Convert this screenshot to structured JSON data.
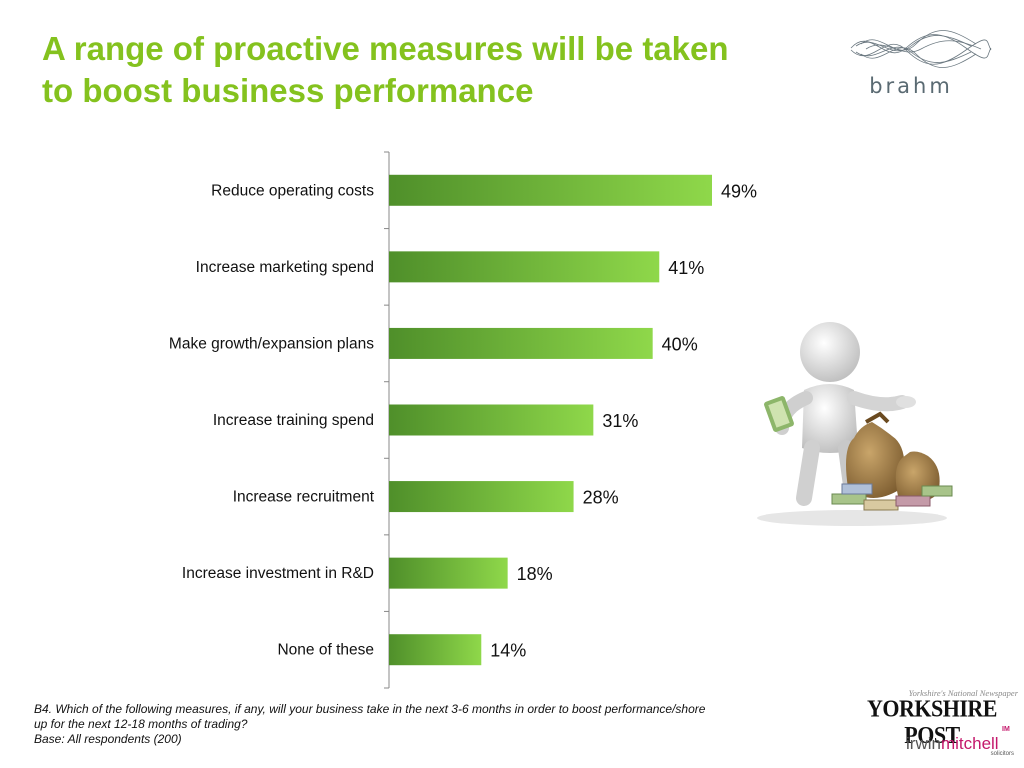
{
  "header": {
    "title_line1": "A range of proactive measures will be taken",
    "title_line2": "to boost business performance"
  },
  "logos": {
    "brahm": "brahm",
    "yorkshire_tagline": "Yorkshire's National Newspaper",
    "yorkshire_name": "YORKSHIRE POST",
    "irwin_part1": "irwin",
    "irwin_part2": "mitchell",
    "irwin_sub": "solicitors",
    "irwin_mark": "IM"
  },
  "chart_data": {
    "type": "bar",
    "orientation": "horizontal",
    "categories": [
      "Reduce operating costs",
      "Increase marketing spend",
      "Make growth/expansion plans",
      "Increase training spend",
      "Increase recruitment",
      "Increase investment in R&D",
      "None of these"
    ],
    "values": [
      49,
      41,
      40,
      31,
      28,
      18,
      14
    ],
    "value_labels": [
      "49%",
      "41%",
      "40%",
      "31%",
      "28%",
      "18%",
      "14%"
    ],
    "unit": "%",
    "xlim": [
      0,
      100
    ],
    "grid": false,
    "bar_color_start": "#4f8f2a",
    "bar_color_end": "#8fd84a"
  },
  "footnote": {
    "line1": "B4. Which of the following measures, if any, will your business take in the next 3-6 months in order to boost performance/shore",
    "line2": "up for the next 12-18 months of trading?",
    "line3": "Base: All respondents (200)"
  },
  "colors": {
    "title": "#84c21e",
    "axis": "#888888"
  }
}
